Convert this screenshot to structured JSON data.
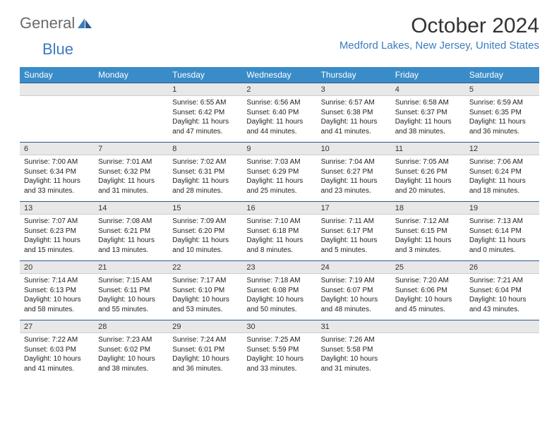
{
  "logo": {
    "text1": "General",
    "text2": "Blue"
  },
  "title": "October 2024",
  "location": "Medford Lakes, New Jersey, United States",
  "colors": {
    "header_bg": "#3a8cc9",
    "header_text": "#ffffff",
    "daynum_bg": "#e8e8e8",
    "border_top": "#2a5a8a",
    "accent": "#3a7cbf"
  },
  "days_of_week": [
    "Sunday",
    "Monday",
    "Tuesday",
    "Wednesday",
    "Thursday",
    "Friday",
    "Saturday"
  ],
  "weeks": [
    {
      "nums": [
        "",
        "",
        "1",
        "2",
        "3",
        "4",
        "5"
      ],
      "cells": [
        {
          "lines": []
        },
        {
          "lines": []
        },
        {
          "lines": [
            "Sunrise: 6:55 AM",
            "Sunset: 6:42 PM",
            "Daylight: 11 hours",
            "and 47 minutes."
          ]
        },
        {
          "lines": [
            "Sunrise: 6:56 AM",
            "Sunset: 6:40 PM",
            "Daylight: 11 hours",
            "and 44 minutes."
          ]
        },
        {
          "lines": [
            "Sunrise: 6:57 AM",
            "Sunset: 6:38 PM",
            "Daylight: 11 hours",
            "and 41 minutes."
          ]
        },
        {
          "lines": [
            "Sunrise: 6:58 AM",
            "Sunset: 6:37 PM",
            "Daylight: 11 hours",
            "and 38 minutes."
          ]
        },
        {
          "lines": [
            "Sunrise: 6:59 AM",
            "Sunset: 6:35 PM",
            "Daylight: 11 hours",
            "and 36 minutes."
          ]
        }
      ]
    },
    {
      "nums": [
        "6",
        "7",
        "8",
        "9",
        "10",
        "11",
        "12"
      ],
      "cells": [
        {
          "lines": [
            "Sunrise: 7:00 AM",
            "Sunset: 6:34 PM",
            "Daylight: 11 hours",
            "and 33 minutes."
          ]
        },
        {
          "lines": [
            "Sunrise: 7:01 AM",
            "Sunset: 6:32 PM",
            "Daylight: 11 hours",
            "and 31 minutes."
          ]
        },
        {
          "lines": [
            "Sunrise: 7:02 AM",
            "Sunset: 6:31 PM",
            "Daylight: 11 hours",
            "and 28 minutes."
          ]
        },
        {
          "lines": [
            "Sunrise: 7:03 AM",
            "Sunset: 6:29 PM",
            "Daylight: 11 hours",
            "and 25 minutes."
          ]
        },
        {
          "lines": [
            "Sunrise: 7:04 AM",
            "Sunset: 6:27 PM",
            "Daylight: 11 hours",
            "and 23 minutes."
          ]
        },
        {
          "lines": [
            "Sunrise: 7:05 AM",
            "Sunset: 6:26 PM",
            "Daylight: 11 hours",
            "and 20 minutes."
          ]
        },
        {
          "lines": [
            "Sunrise: 7:06 AM",
            "Sunset: 6:24 PM",
            "Daylight: 11 hours",
            "and 18 minutes."
          ]
        }
      ]
    },
    {
      "nums": [
        "13",
        "14",
        "15",
        "16",
        "17",
        "18",
        "19"
      ],
      "cells": [
        {
          "lines": [
            "Sunrise: 7:07 AM",
            "Sunset: 6:23 PM",
            "Daylight: 11 hours",
            "and 15 minutes."
          ]
        },
        {
          "lines": [
            "Sunrise: 7:08 AM",
            "Sunset: 6:21 PM",
            "Daylight: 11 hours",
            "and 13 minutes."
          ]
        },
        {
          "lines": [
            "Sunrise: 7:09 AM",
            "Sunset: 6:20 PM",
            "Daylight: 11 hours",
            "and 10 minutes."
          ]
        },
        {
          "lines": [
            "Sunrise: 7:10 AM",
            "Sunset: 6:18 PM",
            "Daylight: 11 hours",
            "and 8 minutes."
          ]
        },
        {
          "lines": [
            "Sunrise: 7:11 AM",
            "Sunset: 6:17 PM",
            "Daylight: 11 hours",
            "and 5 minutes."
          ]
        },
        {
          "lines": [
            "Sunrise: 7:12 AM",
            "Sunset: 6:15 PM",
            "Daylight: 11 hours",
            "and 3 minutes."
          ]
        },
        {
          "lines": [
            "Sunrise: 7:13 AM",
            "Sunset: 6:14 PM",
            "Daylight: 11 hours",
            "and 0 minutes."
          ]
        }
      ]
    },
    {
      "nums": [
        "20",
        "21",
        "22",
        "23",
        "24",
        "25",
        "26"
      ],
      "cells": [
        {
          "lines": [
            "Sunrise: 7:14 AM",
            "Sunset: 6:13 PM",
            "Daylight: 10 hours",
            "and 58 minutes."
          ]
        },
        {
          "lines": [
            "Sunrise: 7:15 AM",
            "Sunset: 6:11 PM",
            "Daylight: 10 hours",
            "and 55 minutes."
          ]
        },
        {
          "lines": [
            "Sunrise: 7:17 AM",
            "Sunset: 6:10 PM",
            "Daylight: 10 hours",
            "and 53 minutes."
          ]
        },
        {
          "lines": [
            "Sunrise: 7:18 AM",
            "Sunset: 6:08 PM",
            "Daylight: 10 hours",
            "and 50 minutes."
          ]
        },
        {
          "lines": [
            "Sunrise: 7:19 AM",
            "Sunset: 6:07 PM",
            "Daylight: 10 hours",
            "and 48 minutes."
          ]
        },
        {
          "lines": [
            "Sunrise: 7:20 AM",
            "Sunset: 6:06 PM",
            "Daylight: 10 hours",
            "and 45 minutes."
          ]
        },
        {
          "lines": [
            "Sunrise: 7:21 AM",
            "Sunset: 6:04 PM",
            "Daylight: 10 hours",
            "and 43 minutes."
          ]
        }
      ]
    },
    {
      "nums": [
        "27",
        "28",
        "29",
        "30",
        "31",
        "",
        ""
      ],
      "cells": [
        {
          "lines": [
            "Sunrise: 7:22 AM",
            "Sunset: 6:03 PM",
            "Daylight: 10 hours",
            "and 41 minutes."
          ]
        },
        {
          "lines": [
            "Sunrise: 7:23 AM",
            "Sunset: 6:02 PM",
            "Daylight: 10 hours",
            "and 38 minutes."
          ]
        },
        {
          "lines": [
            "Sunrise: 7:24 AM",
            "Sunset: 6:01 PM",
            "Daylight: 10 hours",
            "and 36 minutes."
          ]
        },
        {
          "lines": [
            "Sunrise: 7:25 AM",
            "Sunset: 5:59 PM",
            "Daylight: 10 hours",
            "and 33 minutes."
          ]
        },
        {
          "lines": [
            "Sunrise: 7:26 AM",
            "Sunset: 5:58 PM",
            "Daylight: 10 hours",
            "and 31 minutes."
          ]
        },
        {
          "lines": []
        },
        {
          "lines": []
        }
      ]
    }
  ]
}
